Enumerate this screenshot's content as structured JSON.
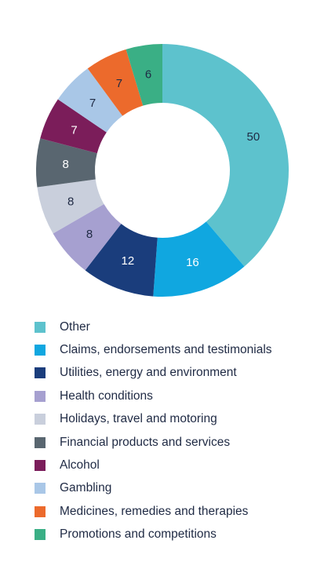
{
  "chart_data": {
    "type": "pie",
    "donut": true,
    "labels": [
      "Other",
      "Claims, endorsements and testimonials",
      "Utilities, energy and environment",
      "Health conditions",
      "Holidays, travel and motoring",
      "Financial products and services",
      "Alcohol",
      "Gambling",
      "Medicines, remedies and therapies",
      "Promotions and competitions"
    ],
    "values": [
      50,
      16,
      12,
      8,
      8,
      8,
      7,
      7,
      7,
      6
    ],
    "colors": [
      "#5dc2cd",
      "#10a7e0",
      "#1a3d7c",
      "#a6a0d0",
      "#c9cfdc",
      "#596670",
      "#7b1d5a",
      "#a9c7e7",
      "#ec6a2c",
      "#3aaf85"
    ],
    "label_colors": [
      "#1f2a44",
      "#ffffff",
      "#ffffff",
      "#1f2a44",
      "#1f2a44",
      "#ffffff",
      "#ffffff",
      "#1f2a44",
      "#1f2a44",
      "#1f2a44"
    ],
    "legend_position": "bottom"
  }
}
